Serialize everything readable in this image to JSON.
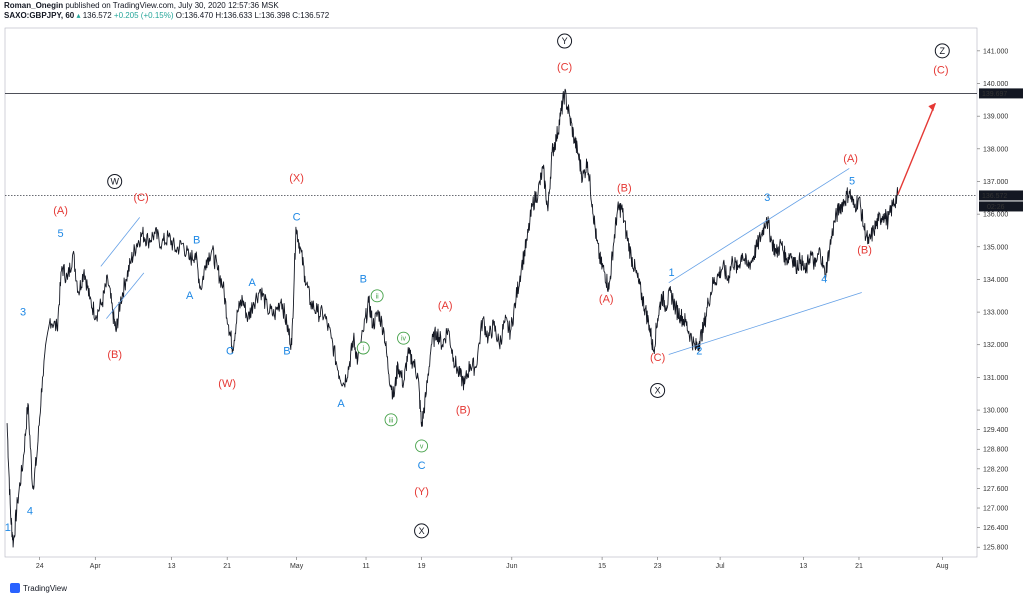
{
  "header": {
    "author": "Roman_Onegin",
    "published": " published on TradingView.com, July 30, 2020 12:57:36 MSK",
    "symbol": "SAXO:GBPJPY, 60",
    "last": "136.572",
    "change": "+0.205 (+0.15%)",
    "ohlc": "O:136.470  H:136.633  L:136.398  C:136.572"
  },
  "footer": {
    "brand": "TradingView"
  },
  "colors": {
    "candle": "#131722",
    "red": "#e53935",
    "blue": "#1e88e5",
    "green": "#43a047",
    "channel": "#64a0e6",
    "arrow": "#e53935"
  },
  "chart_data": {
    "type": "line",
    "title": "SAXO:GBPJPY, 60",
    "ylim": [
      125.5,
      141.7
    ],
    "y_ticks": [
      "141.000",
      "140.000",
      "139.000",
      "138.000",
      "137.000",
      "136.000",
      "135.000",
      "134.000",
      "133.000",
      "132.000",
      "131.000",
      "130.000",
      "129.400",
      "128.800",
      "128.200",
      "127.600",
      "127.000",
      "126.400",
      "125.800"
    ],
    "x_ticks": [
      "24",
      "Apr",
      "13",
      "21",
      "May",
      "11",
      "19",
      "Jun",
      "15",
      "23",
      "Jul",
      "13",
      "21",
      "Aug"
    ],
    "x_tick_days": [
      23,
      31,
      42,
      50,
      60,
      70,
      78,
      91,
      104,
      112,
      121,
      133,
      141,
      153
    ],
    "price_label_top": "139.697",
    "price_label_current": "136.572",
    "countdown": "02:26",
    "path": [
      [
        18.3,
        129.6
      ],
      [
        18.8,
        126.8
      ],
      [
        19.2,
        125.9
      ],
      [
        19.8,
        127.2
      ],
      [
        20.6,
        128.4
      ],
      [
        21.3,
        130.2
      ],
      [
        22.0,
        127.6
      ],
      [
        22.6,
        128.6
      ],
      [
        23.4,
        131.0
      ],
      [
        24.5,
        132.8
      ],
      [
        25.5,
        132.5
      ],
      [
        26.2,
        134.4
      ],
      [
        27.0,
        134.0
      ],
      [
        27.8,
        134.8
      ],
      [
        28.6,
        133.6
      ],
      [
        29.4,
        134.3
      ],
      [
        30.2,
        133.4
      ],
      [
        31.1,
        132.9
      ],
      [
        32.0,
        133.3
      ],
      [
        32.8,
        134.0
      ],
      [
        33.5,
        133.0
      ],
      [
        34.0,
        132.4
      ],
      [
        34.6,
        133.3
      ],
      [
        35.4,
        134.0
      ],
      [
        36.2,
        134.6
      ],
      [
        37.0,
        135.1
      ],
      [
        37.8,
        135.4
      ],
      [
        38.6,
        135.2
      ],
      [
        39.6,
        135.4
      ],
      [
        40.6,
        135.1
      ],
      [
        41.6,
        135.3
      ],
      [
        42.6,
        134.9
      ],
      [
        43.6,
        135.1
      ],
      [
        44.6,
        134.6
      ],
      [
        45.4,
        134.8
      ],
      [
        46.2,
        133.7
      ],
      [
        47.0,
        134.6
      ],
      [
        47.8,
        134.9
      ],
      [
        48.6,
        134.3
      ],
      [
        49.4,
        133.8
      ],
      [
        50.2,
        132.6
      ],
      [
        50.8,
        131.9
      ],
      [
        51.5,
        133.0
      ],
      [
        52.2,
        133.4
      ],
      [
        53.0,
        132.8
      ],
      [
        53.8,
        133.3
      ],
      [
        54.8,
        133.7
      ],
      [
        55.8,
        133.1
      ],
      [
        56.8,
        132.9
      ],
      [
        57.8,
        133.4
      ],
      [
        58.6,
        132.6
      ],
      [
        59.3,
        132.0
      ],
      [
        59.9,
        135.6
      ],
      [
        60.5,
        135.0
      ],
      [
        61.2,
        134.1
      ],
      [
        62.0,
        133.3
      ],
      [
        63.0,
        133.0
      ],
      [
        64.0,
        132.9
      ],
      [
        65.0,
        132.2
      ],
      [
        66.0,
        131.2
      ],
      [
        66.8,
        130.8
      ],
      [
        67.6,
        131.4
      ],
      [
        68.2,
        132.2
      ],
      [
        68.8,
        131.5
      ],
      [
        69.6,
        132.4
      ],
      [
        70.4,
        133.3
      ],
      [
        71.0,
        132.6
      ],
      [
        71.8,
        133.0
      ],
      [
        72.6,
        132.4
      ],
      [
        73.3,
        131.1
      ],
      [
        74.0,
        130.4
      ],
      [
        74.6,
        131.4
      ],
      [
        75.4,
        130.8
      ],
      [
        76.0,
        131.7
      ],
      [
        76.8,
        131.5
      ],
      [
        77.5,
        131.0
      ],
      [
        78.0,
        129.5
      ],
      [
        78.6,
        130.4
      ],
      [
        79.4,
        132.0
      ],
      [
        80.2,
        132.4
      ],
      [
        81.0,
        132.0
      ],
      [
        81.8,
        132.5
      ],
      [
        82.6,
        131.6
      ],
      [
        83.4,
        131.1
      ],
      [
        84.2,
        130.8
      ],
      [
        85.0,
        131.4
      ],
      [
        85.8,
        131.3
      ],
      [
        86.8,
        132.8
      ],
      [
        87.6,
        132.2
      ],
      [
        88.4,
        132.6
      ],
      [
        89.2,
        132.0
      ],
      [
        90.0,
        132.7
      ],
      [
        90.8,
        132.4
      ],
      [
        91.6,
        133.4
      ],
      [
        92.4,
        134.4
      ],
      [
        93.2,
        135.2
      ],
      [
        94.0,
        136.3
      ],
      [
        94.8,
        136.7
      ],
      [
        95.5,
        137.4
      ],
      [
        96.2,
        136.1
      ],
      [
        96.8,
        137.9
      ],
      [
        97.4,
        138.3
      ],
      [
        98.0,
        139.0
      ],
      [
        98.6,
        139.7
      ],
      [
        99.3,
        139.0
      ],
      [
        100.0,
        138.3
      ],
      [
        100.6,
        137.8
      ],
      [
        101.2,
        137.1
      ],
      [
        101.9,
        137.6
      ],
      [
        102.6,
        136.3
      ],
      [
        103.2,
        135.2
      ],
      [
        103.8,
        134.5
      ],
      [
        104.4,
        134.2
      ],
      [
        105.0,
        133.7
      ],
      [
        105.6,
        135.0
      ],
      [
        106.2,
        136.1
      ],
      [
        106.8,
        136.2
      ],
      [
        107.5,
        135.4
      ],
      [
        108.2,
        134.7
      ],
      [
        108.9,
        134.2
      ],
      [
        109.6,
        133.6
      ],
      [
        110.2,
        133.1
      ],
      [
        110.8,
        132.6
      ],
      [
        111.4,
        131.8
      ],
      [
        112.0,
        132.8
      ],
      [
        112.6,
        133.5
      ],
      [
        113.2,
        133.2
      ],
      [
        113.9,
        133.6
      ],
      [
        114.6,
        133.1
      ],
      [
        115.3,
        132.9
      ],
      [
        116.0,
        132.7
      ],
      [
        116.7,
        132.3
      ],
      [
        117.4,
        131.9
      ],
      [
        118.0,
        132.1
      ],
      [
        118.6,
        132.5
      ],
      [
        119.3,
        133.3
      ],
      [
        120.0,
        133.9
      ],
      [
        120.7,
        134.1
      ],
      [
        121.4,
        134.4
      ],
      [
        122.1,
        134.0
      ],
      [
        122.8,
        134.6
      ],
      [
        123.5,
        134.3
      ],
      [
        124.2,
        134.8
      ],
      [
        124.9,
        134.4
      ],
      [
        125.6,
        134.6
      ],
      [
        126.3,
        135.0
      ],
      [
        127.0,
        135.4
      ],
      [
        127.7,
        135.9
      ],
      [
        128.4,
        135.2
      ],
      [
        129.1,
        134.8
      ],
      [
        129.8,
        135.1
      ],
      [
        130.5,
        134.6
      ],
      [
        131.2,
        134.8
      ],
      [
        131.9,
        134.4
      ],
      [
        132.6,
        134.6
      ],
      [
        133.3,
        134.2
      ],
      [
        134.0,
        134.8
      ],
      [
        134.7,
        134.4
      ],
      [
        135.4,
        134.9
      ],
      [
        136.1,
        134.1
      ],
      [
        136.8,
        135.0
      ],
      [
        137.5,
        135.8
      ],
      [
        138.2,
        136.2
      ],
      [
        138.9,
        136.4
      ],
      [
        139.6,
        136.7
      ],
      [
        140.3,
        136.2
      ],
      [
        141.0,
        136.5
      ],
      [
        141.7,
        135.6
      ],
      [
        142.4,
        135.1
      ],
      [
        143.1,
        135.5
      ],
      [
        143.8,
        135.8
      ],
      [
        144.5,
        136.0
      ],
      [
        145.2,
        135.8
      ],
      [
        145.9,
        136.3
      ],
      [
        146.6,
        136.572
      ]
    ]
  },
  "wave_labels": {
    "red": [
      {
        "t": "(A)",
        "d": 26.0,
        "v": 136.0
      },
      {
        "t": "(C)",
        "d": 37.6,
        "v": 136.4
      },
      {
        "t": "(B)",
        "d": 33.8,
        "v": 131.6
      },
      {
        "t": "(W)",
        "d": 50.0,
        "v": 130.7
      },
      {
        "t": "(X)",
        "d": 60.0,
        "v": 137.0
      },
      {
        "t": "(A)",
        "d": 81.4,
        "v": 133.1
      },
      {
        "t": "(B)",
        "d": 84.0,
        "v": 129.9
      },
      {
        "t": "(Y)",
        "d": 78.0,
        "v": 127.4
      },
      {
        "t": "(C)",
        "d": 98.6,
        "v": 140.4
      },
      {
        "t": "(B)",
        "d": 107.2,
        "v": 136.7
      },
      {
        "t": "(A)",
        "d": 104.6,
        "v": 133.3
      },
      {
        "t": "(C)",
        "d": 112.0,
        "v": 131.5
      },
      {
        "t": "(A)",
        "d": 139.8,
        "v": 137.6
      },
      {
        "t": "(B)",
        "d": 141.8,
        "v": 134.8
      },
      {
        "t": "(C)",
        "d": 152.8,
        "v": 140.3
      }
    ],
    "blue": [
      {
        "t": "5",
        "d": 26.0,
        "v": 135.3
      },
      {
        "t": "3",
        "d": 20.6,
        "v": 132.9
      },
      {
        "t": "4",
        "d": 21.6,
        "v": 126.8
      },
      {
        "t": "1",
        "d": 18.4,
        "v": 126.3
      },
      {
        "t": "B",
        "d": 45.6,
        "v": 135.1
      },
      {
        "t": "A",
        "d": 44.6,
        "v": 133.4
      },
      {
        "t": "C",
        "d": 50.4,
        "v": 131.7
      },
      {
        "t": "A",
        "d": 53.6,
        "v": 133.8
      },
      {
        "t": "B",
        "d": 58.6,
        "v": 131.7
      },
      {
        "t": "C",
        "d": 60.0,
        "v": 135.8
      },
      {
        "t": "B",
        "d": 69.6,
        "v": 133.9
      },
      {
        "t": "A",
        "d": 66.4,
        "v": 130.1
      },
      {
        "t": "C",
        "d": 78.0,
        "v": 128.2
      },
      {
        "t": "1",
        "d": 114.0,
        "v": 134.1
      },
      {
        "t": "2",
        "d": 118.0,
        "v": 131.7
      },
      {
        "t": "3",
        "d": 127.8,
        "v": 136.4
      },
      {
        "t": "4",
        "d": 136.0,
        "v": 133.9
      },
      {
        "t": "5",
        "d": 140.0,
        "v": 136.9
      }
    ],
    "green": [
      {
        "t": "ii",
        "d": 71.6,
        "v": 133.5
      },
      {
        "t": "i",
        "d": 69.6,
        "v": 131.9
      },
      {
        "t": "iv",
        "d": 75.4,
        "v": 132.2
      },
      {
        "t": "iii",
        "d": 73.6,
        "v": 129.7
      },
      {
        "t": "v",
        "d": 78.0,
        "v": 128.9
      }
    ],
    "black": [
      {
        "t": "W",
        "d": 33.8,
        "v": 137.0
      },
      {
        "t": "X",
        "d": 78.0,
        "v": 126.3
      },
      {
        "t": "Y",
        "d": 98.6,
        "v": 141.3
      },
      {
        "t": "X",
        "d": 112.0,
        "v": 130.6
      },
      {
        "t": "Z",
        "d": 153.0,
        "v": 141.0
      }
    ]
  }
}
